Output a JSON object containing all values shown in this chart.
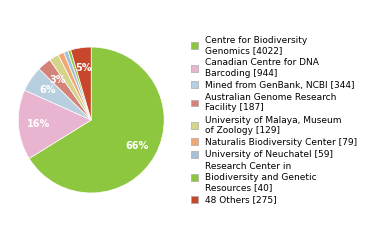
{
  "labels": [
    "Centre for Biodiversity\nGenomics [4022]",
    "Canadian Centre for DNA\nBarcoding [944]",
    "Mined from GenBank, NCBI [344]",
    "Australian Genome Research\nFacility [187]",
    "University of Malaya, Museum\nof Zoology [129]",
    "Naturalis Biodiversity Center [79]",
    "University of Neuchatel [59]",
    "Research Center in\nBiodiversity and Genetic\nResources [40]",
    "48 Others [275]"
  ],
  "values": [
    4022,
    944,
    344,
    187,
    129,
    79,
    59,
    40,
    275
  ],
  "colors": [
    "#8dc63f",
    "#e8b4d0",
    "#b8cfe0",
    "#d4837a",
    "#d4d48a",
    "#f0a870",
    "#a8c0d8",
    "#8dc63f",
    "#c8472c"
  ],
  "pct_show_threshold": 2.5,
  "background_color": "#ffffff",
  "legend_fontsize": 6.5,
  "figsize": [
    3.8,
    2.4
  ],
  "dpi": 100
}
